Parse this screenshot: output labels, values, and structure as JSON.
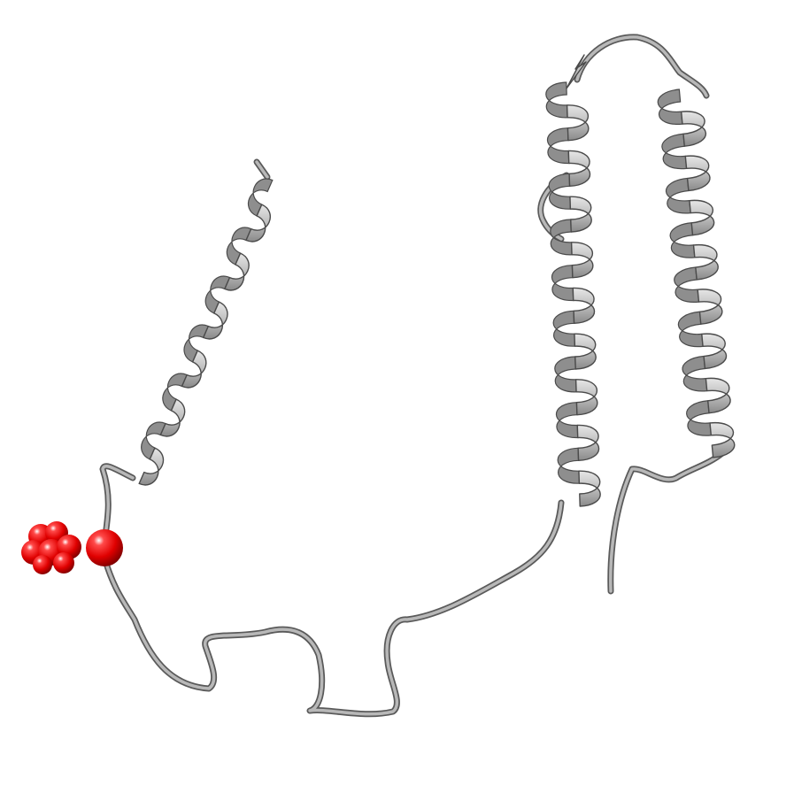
{
  "structure": {
    "representation": "ribbon",
    "ribbon_color": "#b0b0b0",
    "ribbon_outline_color": "#4a4a4a",
    "highlight_atom_color": "#e00000",
    "background_color": "#ffffff",
    "helix_count": 3
  }
}
